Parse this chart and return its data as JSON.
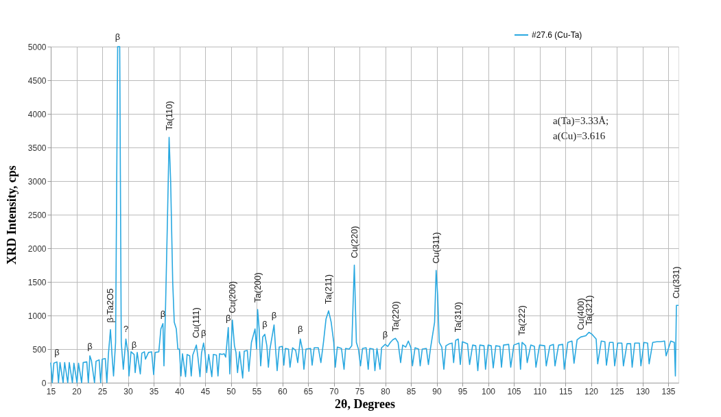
{
  "chart_data": {
    "type": "line",
    "xlabel": "2θ, Degrees",
    "ylabel": "XRD Intensity, cps",
    "xlim": [
      15,
      137
    ],
    "ylim": [
      0,
      5000
    ],
    "xticks": [
      15,
      20,
      25,
      30,
      35,
      40,
      45,
      50,
      55,
      60,
      65,
      70,
      75,
      80,
      85,
      90,
      95,
      100,
      105,
      110,
      115,
      120,
      125,
      130,
      135
    ],
    "yticks": [
      0,
      500,
      1000,
      1500,
      2000,
      2500,
      3000,
      3500,
      4000,
      4500,
      5000
    ],
    "grid": true,
    "legend": "top right",
    "marker": "none",
    "line_style": "solid",
    "series": [
      {
        "name": "#27.6 (Cu-Ta)",
        "color": "#29a8e0",
        "x": [
          15,
          15.3,
          15.6,
          16.2,
          16.5,
          16.8,
          17.4,
          17.7,
          18.3,
          18.6,
          19.2,
          19.5,
          20.1,
          20.4,
          21,
          21.3,
          22,
          22.3,
          22.6,
          22.9,
          23.5,
          23.8,
          24.4,
          24.7,
          25,
          25.6,
          25.9,
          26.2,
          26.6,
          26.9,
          27.2,
          27.6,
          28,
          28.4,
          28.7,
          29.1,
          29.6,
          30,
          30.2,
          30.6,
          31.2,
          31.4,
          31.8,
          32.4,
          32.7,
          33.2,
          33.4,
          34,
          34.6,
          35,
          35.3,
          36,
          36.4,
          36.8,
          37,
          37.3,
          37.7,
          38,
          38.3,
          38.7,
          39,
          39.4,
          39.7,
          40,
          40.3,
          40.6,
          41.2,
          41.5,
          42,
          42.3,
          42.6,
          43.3,
          43.6,
          44,
          44.3,
          44.7,
          45,
          45.3,
          45.7,
          46.3,
          46.6,
          47.2,
          47.5,
          47.8,
          48.3,
          48.7,
          49,
          49.5,
          49.8,
          50.3,
          50.7,
          51,
          51.3,
          51.7,
          52.3,
          52.6,
          53.2,
          53.5,
          54,
          54.7,
          55,
          55.2,
          55.5,
          55.8,
          56.2,
          56.6,
          57,
          57.3,
          57.6,
          58.4,
          58.7,
          59,
          59.4,
          60,
          60.3,
          60.6,
          61.2,
          61.5,
          62,
          62.6,
          63,
          63.5,
          63.9,
          64.2,
          64.6,
          65.5,
          65.8,
          66.2,
          67,
          67.5,
          68,
          68.5,
          69,
          69.5,
          70,
          70.3,
          70.7,
          71.5,
          72,
          72.3,
          73,
          73.5,
          74,
          74.4,
          74.8,
          75.2,
          75.6,
          76.3,
          76.7,
          77,
          77.7,
          78,
          78.4,
          79,
          79.3,
          80,
          80.5,
          81,
          81.5,
          82,
          82.5,
          83,
          83.4,
          84,
          84.5,
          85,
          85.3,
          85.8,
          86.5,
          86.8,
          87.2,
          88,
          88.4,
          88.8,
          89.6,
          89.9,
          90.2,
          90.5,
          91,
          91.4,
          91.8,
          92.5,
          93,
          93.3,
          93.7,
          94.2,
          94.6,
          95,
          96,
          96.4,
          97,
          97.6,
          98,
          98.4,
          99.2,
          99.5,
          100,
          100.6,
          101,
          101.5,
          102.3,
          102.6,
          103,
          104,
          104.4,
          105,
          106,
          106.3,
          106.6,
          107.3,
          107.6,
          108.3,
          109,
          109.3,
          110,
          111,
          111.3,
          112,
          112.7,
          113,
          113.7,
          114.5,
          114.8,
          115.5,
          116.3,
          116.7,
          117.3,
          118,
          119,
          119.6,
          120.2,
          121,
          121.3,
          122,
          122.7,
          123,
          123.6,
          124.3,
          124.6,
          125.2,
          126,
          126.3,
          127,
          127.7,
          128,
          128.5,
          129.4,
          129.7,
          130.3,
          131,
          131.3,
          132,
          132.8,
          133.5,
          134.3,
          134.6,
          135.5,
          136.2,
          136.4,
          136.6,
          137
        ],
        "values": [
          300,
          0,
          290,
          310,
          0,
          300,
          0,
          300,
          0,
          300,
          0,
          290,
          0,
          290,
          0,
          300,
          310,
          0,
          400,
          330,
          0,
          320,
          340,
          0,
          350,
          360,
          0,
          420,
          790,
          420,
          100,
          600,
          5000,
          5000,
          600,
          200,
          650,
          450,
          100,
          460,
          420,
          150,
          450,
          130,
          440,
          460,
          350,
          450,
          460,
          120,
          450,
          460,
          800,
          880,
          250,
          1100,
          2500,
          3650,
          3000,
          1500,
          900,
          800,
          500,
          500,
          100,
          430,
          90,
          420,
          400,
          100,
          410,
          560,
          380,
          90,
          440,
          590,
          430,
          150,
          420,
          90,
          420,
          410,
          100,
          430,
          420,
          430,
          380,
          820,
          130,
          930,
          550,
          450,
          150,
          460,
          70,
          470,
          480,
          170,
          600,
          800,
          500,
          1090,
          800,
          250,
          680,
          720,
          550,
          230,
          500,
          860,
          500,
          180,
          530,
          540,
          260,
          510,
          500,
          230,
          520,
          480,
          300,
          650,
          500,
          200,
          500,
          510,
          260,
          520,
          520,
          300,
          600,
          950,
          1070,
          900,
          600,
          230,
          530,
          510,
          200,
          510,
          500,
          550,
          1750,
          600,
          500,
          250,
          510,
          520,
          200,
          510,
          500,
          180,
          510,
          200,
          520,
          570,
          540,
          600,
          640,
          660,
          600,
          300,
          560,
          530,
          620,
          520,
          250,
          520,
          500,
          250,
          500,
          510,
          270,
          510,
          900,
          1670,
          1300,
          600,
          530,
          200,
          550,
          580,
          590,
          300,
          630,
          650,
          270,
          610,
          580,
          270,
          560,
          550,
          180,
          560,
          550,
          200,
          560,
          550,
          220,
          550,
          540,
          230,
          560,
          570,
          230,
          560,
          590,
          200,
          600,
          550,
          300,
          560,
          540,
          230,
          560,
          550,
          250,
          550,
          570,
          250,
          560,
          570,
          200,
          600,
          620,
          290,
          640,
          680,
          700,
          750,
          720,
          650,
          280,
          620,
          610,
          260,
          600,
          600,
          250,
          590,
          590,
          250,
          580,
          580,
          230,
          590,
          590,
          250,
          600,
          590,
          280,
          600,
          610,
          610,
          620,
          400,
          620,
          600,
          100,
          1150,
          1150
        ]
      }
    ],
    "annotations": [
      {
        "text": "β",
        "x": 16.2,
        "y": 310
      },
      {
        "text": "β",
        "x": 22.6,
        "y": 400
      },
      {
        "text": "β-Ta2O5",
        "x": 26.6,
        "y": 790
      },
      {
        "text": "β",
        "x": 28,
        "y": 5000
      },
      {
        "text": "?",
        "x": 29.6,
        "y": 650
      },
      {
        "text": "β",
        "x": 31.2,
        "y": 420
      },
      {
        "text": "β",
        "x": 36.8,
        "y": 880
      },
      {
        "text": "Ta(110)",
        "x": 38,
        "y": 3650
      },
      {
        "text": "Cu(111)",
        "x": 43.3,
        "y": 560
      },
      {
        "text": "β",
        "x": 44.7,
        "y": 590
      },
      {
        "text": "β",
        "x": 49.5,
        "y": 820
      },
      {
        "text": "Cu(200)",
        "x": 50.3,
        "y": 930
      },
      {
        "text": "Ta(200)",
        "x": 55.2,
        "y": 1090
      },
      {
        "text": "β",
        "x": 56.6,
        "y": 720
      },
      {
        "text": "β",
        "x": 58.4,
        "y": 860
      },
      {
        "text": "β",
        "x": 63.5,
        "y": 650
      },
      {
        "text": "Ta(211)",
        "x": 69,
        "y": 1070
      },
      {
        "text": "Cu(220)",
        "x": 74,
        "y": 1750
      },
      {
        "text": "β",
        "x": 80,
        "y": 570
      },
      {
        "text": "Ta(220)",
        "x": 82,
        "y": 660
      },
      {
        "text": "Cu(311)",
        "x": 89.9,
        "y": 1670
      },
      {
        "text": "Ta(310)",
        "x": 94.2,
        "y": 650
      },
      {
        "text": "Ta(222)",
        "x": 106.6,
        "y": 600
      },
      {
        "text": "Cu(400)",
        "x": 118,
        "y": 680
      },
      {
        "text": "Ta(321)",
        "x": 119.6,
        "y": 750
      },
      {
        "text": "Cu(331)",
        "x": 136.6,
        "y": 1150
      },
      "a(Ta)=3.33Å;",
      "a(Cu)=3.616"
    ]
  }
}
